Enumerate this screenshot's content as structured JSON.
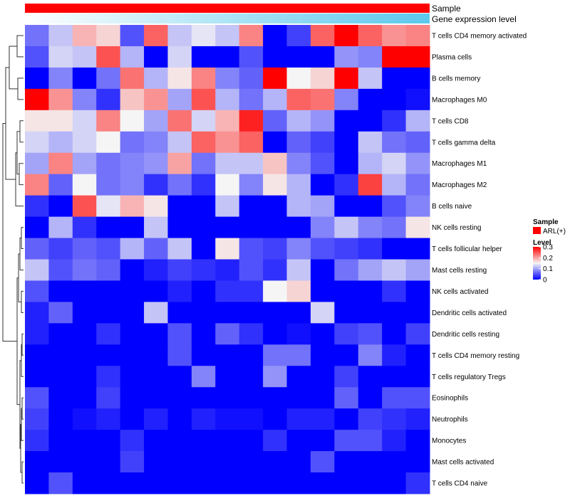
{
  "chart_data": {
    "type": "heatmap",
    "annotation_tracks": [
      {
        "label": "Sample",
        "color": "#ff0000"
      },
      {
        "label": "Gene expression level",
        "gradient": [
          "#ffffff",
          "#5bc8ec"
        ]
      }
    ],
    "rows": [
      "T cells CD4 memory activated",
      "Plasma cells",
      "B cells memory",
      "Macrophages M0",
      "T cells CD8",
      "T cells gamma delta",
      "Macrophages M1",
      "Macrophages M2",
      "B cells naive",
      "NK cells resting",
      "T cells follicular helper",
      "Mast cells resting",
      "NK cells activated",
      "Dendritic cells activated",
      "Dendritic cells resting",
      "T cells CD4 memory resting",
      "T cells regulatory  Tregs",
      "Eosinophils",
      "Neutrophils",
      "Monocytes",
      "Mast cells activated",
      "T cells CD4 naive"
    ],
    "n_columns": 17,
    "values": [
      [
        0.07,
        0.12,
        0.19,
        0.17,
        0.05,
        0.24,
        0.12,
        0.14,
        0.12,
        0.22,
        0.0,
        0.04,
        0.24,
        0.3,
        0.24,
        0.21,
        0.22
      ],
      [
        0.05,
        0.13,
        0.12,
        0.25,
        0.11,
        0.0,
        0.13,
        0.0,
        0.0,
        0.05,
        0.0,
        0.0,
        0.0,
        0.09,
        0.08,
        0.3,
        0.3
      ],
      [
        0.0,
        0.08,
        0.0,
        0.07,
        0.23,
        0.11,
        0.16,
        0.22,
        0.08,
        0.06,
        0.3,
        0.15,
        0.17,
        0.3,
        0.12,
        0.0,
        0.0
      ],
      [
        0.3,
        0.21,
        0.08,
        0.03,
        0.18,
        0.21,
        0.1,
        0.25,
        0.11,
        0.07,
        0.11,
        0.24,
        0.23,
        0.08,
        0.0,
        0.0,
        0.01
      ],
      [
        0.16,
        0.16,
        0.13,
        0.22,
        0.15,
        0.1,
        0.23,
        0.13,
        0.19,
        0.28,
        0.06,
        0.11,
        0.09,
        0.0,
        0.0,
        0.03,
        0.11
      ],
      [
        0.13,
        0.11,
        0.13,
        0.15,
        0.07,
        0.08,
        0.12,
        0.24,
        0.21,
        0.24,
        0.0,
        0.06,
        0.04,
        0.0,
        0.12,
        0.07,
        0.06
      ],
      [
        0.1,
        0.22,
        0.1,
        0.07,
        0.08,
        0.09,
        0.2,
        0.07,
        0.12,
        0.12,
        0.18,
        0.08,
        0.05,
        0.0,
        0.11,
        0.13,
        0.09
      ],
      [
        0.22,
        0.06,
        0.15,
        0.07,
        0.08,
        0.03,
        0.07,
        0.03,
        0.15,
        0.08,
        0.16,
        0.11,
        0.0,
        0.03,
        0.26,
        0.11,
        0.07
      ],
      [
        0.03,
        0.0,
        0.25,
        0.14,
        0.19,
        0.16,
        0.0,
        0.0,
        0.12,
        0.0,
        0.0,
        0.11,
        0.1,
        0.0,
        0.0,
        0.05,
        0.08
      ],
      [
        0.0,
        0.11,
        0.03,
        0.0,
        0.0,
        0.12,
        0.0,
        0.0,
        0.0,
        0.0,
        0.0,
        0.0,
        0.08,
        0.12,
        0.08,
        0.07,
        0.16
      ],
      [
        0.06,
        0.04,
        0.06,
        0.05,
        0.11,
        0.06,
        0.12,
        0.0,
        0.16,
        0.05,
        0.04,
        0.08,
        0.05,
        0.04,
        0.03,
        0.0,
        0.0
      ],
      [
        0.12,
        0.05,
        0.07,
        0.06,
        0.0,
        0.02,
        0.04,
        0.03,
        0.02,
        0.05,
        0.03,
        0.12,
        0.0,
        0.07,
        0.1,
        0.12,
        0.1
      ],
      [
        0.05,
        0.0,
        0.0,
        0.0,
        0.0,
        0.0,
        0.02,
        0.0,
        0.03,
        0.03,
        0.15,
        0.17,
        0.0,
        0.0,
        0.0,
        0.03,
        0.0
      ],
      [
        0.02,
        0.06,
        0.0,
        0.0,
        0.0,
        0.12,
        0.0,
        0.0,
        0.0,
        0.0,
        0.0,
        0.0,
        0.13,
        0.0,
        0.0,
        0.0,
        0.0
      ],
      [
        0.02,
        0.0,
        0.0,
        0.03,
        0.0,
        0.0,
        0.05,
        0.0,
        0.06,
        0.03,
        0.0,
        0.01,
        0.0,
        0.04,
        0.05,
        0.0,
        0.04
      ],
      [
        0.0,
        0.0,
        0.0,
        0.0,
        0.0,
        0.0,
        0.05,
        0.0,
        0.0,
        0.0,
        0.07,
        0.07,
        0.0,
        0.0,
        0.08,
        0.02,
        0.0
      ],
      [
        0.0,
        0.0,
        0.0,
        0.03,
        0.0,
        0.0,
        0.0,
        0.08,
        0.0,
        0.0,
        0.09,
        0.0,
        0.0,
        0.04,
        0.0,
        0.0,
        0.0
      ],
      [
        0.05,
        0.0,
        0.0,
        0.04,
        0.0,
        0.0,
        0.0,
        0.0,
        0.0,
        0.0,
        0.0,
        0.0,
        0.0,
        0.06,
        0.0,
        0.05,
        0.05
      ],
      [
        0.04,
        0.0,
        0.01,
        0.02,
        0.0,
        0.02,
        0.0,
        0.02,
        0.01,
        0.01,
        0.0,
        0.02,
        0.02,
        0.0,
        0.04,
        0.03,
        0.02
      ],
      [
        0.03,
        0.0,
        0.0,
        0.0,
        0.03,
        0.0,
        0.0,
        0.0,
        0.0,
        0.0,
        0.03,
        0.0,
        0.0,
        0.05,
        0.05,
        0.02,
        0.0
      ],
      [
        0.0,
        0.0,
        0.0,
        0.0,
        0.04,
        0.0,
        0.0,
        0.0,
        0.0,
        0.0,
        0.0,
        0.0,
        0.05,
        0.0,
        0.0,
        0.0,
        0.0
      ],
      [
        0.0,
        0.05,
        0.0,
        0.0,
        0.0,
        0.0,
        0.0,
        0.0,
        0.0,
        0.0,
        0.0,
        0.0,
        0.0,
        0.0,
        0.0,
        0.0,
        0.03
      ]
    ],
    "color_scale": {
      "min": 0,
      "max": 0.3,
      "low": "#0000ff",
      "mid": "#f5f5f5",
      "high": "#ff0000"
    },
    "legend": {
      "sample_title": "Sample",
      "sample_label": "ARL(+)",
      "level_title": "Level",
      "level_ticks": [
        "0.3",
        "0.2",
        "0.1",
        "0"
      ],
      "placement": "right"
    },
    "dendrogram": "rows, left side"
  }
}
